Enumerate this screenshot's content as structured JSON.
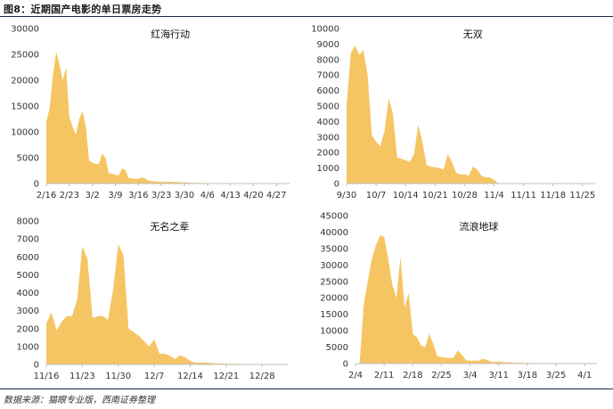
{
  "figure": {
    "title": "图8：近期国产电影的单日票房走势",
    "source": "数据来源：猫眼专业版，西南证券整理"
  },
  "colors": {
    "fill": "#F6C563",
    "axis": "#bfbfbf",
    "text": "#333333"
  },
  "chart_data": [
    {
      "type": "area",
      "title": "红海行动",
      "xlabel": "",
      "ylabel": "",
      "ylim": [
        0,
        30000
      ],
      "yticks": [
        0,
        5000,
        10000,
        15000,
        20000,
        25000,
        30000
      ],
      "x_range": [
        0,
        74
      ],
      "xticks": [
        {
          "x": 0,
          "label": "2/16"
        },
        {
          "x": 7,
          "label": "2/23"
        },
        {
          "x": 14,
          "label": "3/2"
        },
        {
          "x": 21,
          "label": "3/9"
        },
        {
          "x": 28,
          "label": "3/16"
        },
        {
          "x": 35,
          "label": "3/23"
        },
        {
          "x": 42,
          "label": "3/30"
        },
        {
          "x": 49,
          "label": "4/6"
        },
        {
          "x": 56,
          "label": "4/13"
        },
        {
          "x": 63,
          "label": "4/20"
        },
        {
          "x": 70,
          "label": "4/27"
        }
      ],
      "x": [
        0,
        1,
        2,
        3,
        4,
        5,
        6,
        7,
        8,
        9,
        10,
        11,
        12,
        13,
        14,
        15,
        16,
        17,
        18,
        19,
        20,
        21,
        22,
        23,
        24,
        25,
        26,
        27,
        28,
        29,
        30,
        31,
        32,
        33,
        34,
        35,
        36,
        37,
        38,
        39,
        40,
        41,
        42,
        43,
        44,
        45,
        46,
        47,
        48,
        49,
        50,
        51,
        52,
        53,
        54,
        55,
        56,
        57,
        58,
        59,
        60,
        61,
        62,
        63,
        64,
        65,
        66,
        67,
        68,
        69,
        70,
        71,
        72
      ],
      "values": [
        12000,
        14500,
        21000,
        25500,
        23000,
        20000,
        22500,
        13000,
        11000,
        9500,
        12500,
        14000,
        11000,
        4500,
        4000,
        3800,
        3800,
        5800,
        5000,
        2000,
        1900,
        1700,
        1600,
        2900,
        2700,
        1100,
        1000,
        900,
        900,
        1200,
        1000,
        600,
        500,
        400,
        400,
        300,
        300,
        400,
        350,
        300,
        300,
        250,
        200,
        200,
        150,
        150,
        120,
        100,
        100,
        80,
        80,
        70,
        60,
        60,
        50,
        50,
        40,
        40,
        30,
        30,
        30,
        20,
        20,
        20,
        20,
        10,
        10,
        10,
        10,
        10,
        10,
        0,
        0
      ]
    },
    {
      "type": "area",
      "title": "无双",
      "xlabel": "",
      "ylabel": "",
      "ylim": [
        0,
        10000
      ],
      "yticks": [
        0,
        1000,
        2000,
        3000,
        4000,
        5000,
        6000,
        7000,
        8000,
        9000,
        10000
      ],
      "x_range": [
        0,
        59
      ],
      "xticks": [
        {
          "x": 0,
          "label": "9/30"
        },
        {
          "x": 7,
          "label": "10/7"
        },
        {
          "x": 14,
          "label": "10/14"
        },
        {
          "x": 21,
          "label": "10/21"
        },
        {
          "x": 28,
          "label": "10/28"
        },
        {
          "x": 35,
          "label": "11/4"
        },
        {
          "x": 42,
          "label": "11/11"
        },
        {
          "x": 49,
          "label": "11/18"
        },
        {
          "x": 56,
          "label": "11/25"
        }
      ],
      "x": [
        0,
        1,
        2,
        3,
        4,
        5,
        6,
        7,
        8,
        9,
        10,
        11,
        12,
        13,
        14,
        15,
        16,
        17,
        18,
        19,
        20,
        21,
        22,
        23,
        24,
        25,
        26,
        27,
        28,
        29,
        30,
        31,
        32,
        33,
        34,
        35,
        36,
        37,
        38,
        39,
        40,
        41,
        42,
        43,
        44,
        45,
        46,
        47,
        48,
        49,
        50,
        51,
        52,
        53,
        54,
        55
      ],
      "values": [
        5100,
        8400,
        8900,
        8300,
        8600,
        7000,
        3100,
        2700,
        2400,
        3400,
        5500,
        4500,
        1700,
        1600,
        1500,
        1400,
        1900,
        3800,
        2700,
        1200,
        1100,
        1050,
        1000,
        900,
        1900,
        1400,
        700,
        600,
        600,
        500,
        1100,
        900,
        500,
        400,
        400,
        250,
        0,
        0,
        0,
        0,
        0,
        0,
        0,
        0,
        0,
        0,
        0,
        0,
        0,
        0,
        0,
        0,
        0,
        0,
        0,
        0
      ]
    },
    {
      "type": "area",
      "title": "无名之辈",
      "xlabel": "",
      "ylabel": "",
      "ylim": [
        0,
        8000
      ],
      "yticks": [
        0,
        1000,
        2000,
        3000,
        4000,
        5000,
        6000,
        7000,
        8000
      ],
      "x_range": [
        0,
        47
      ],
      "xticks": [
        {
          "x": 0,
          "label": "11/16"
        },
        {
          "x": 7,
          "label": "11/23"
        },
        {
          "x": 14,
          "label": "11/30"
        },
        {
          "x": 21,
          "label": "12/7"
        },
        {
          "x": 28,
          "label": "12/14"
        },
        {
          "x": 35,
          "label": "12/21"
        },
        {
          "x": 42,
          "label": "12/28"
        }
      ],
      "x": [
        0,
        1,
        2,
        3,
        4,
        5,
        6,
        7,
        8,
        9,
        10,
        11,
        12,
        13,
        14,
        15,
        16,
        17,
        18,
        19,
        20,
        21,
        22,
        23,
        24,
        25,
        26,
        27,
        28,
        29,
        30,
        31,
        32,
        33,
        34,
        35,
        36,
        37,
        38,
        39,
        40,
        41,
        42,
        43,
        44,
        45,
        46
      ],
      "values": [
        2300,
        2900,
        1900,
        2400,
        2700,
        2700,
        3600,
        6600,
        5900,
        2600,
        2700,
        2700,
        2500,
        4200,
        6700,
        6100,
        2000,
        1800,
        1600,
        1300,
        1000,
        1400,
        600,
        600,
        500,
        300,
        500,
        400,
        200,
        100,
        100,
        100,
        80,
        60,
        50,
        40,
        40,
        30,
        30,
        20,
        20,
        20,
        10,
        10,
        10,
        10,
        10
      ]
    },
    {
      "type": "area",
      "title": "流浪地球",
      "xlabel": "",
      "ylabel": "",
      "ylim": [
        0,
        45000
      ],
      "yticks": [
        0,
        5000,
        10000,
        15000,
        20000,
        25000,
        30000,
        35000,
        40000,
        45000
      ],
      "x_range": [
        0,
        59
      ],
      "xticks": [
        {
          "x": 0,
          "label": "2/4"
        },
        {
          "x": 7,
          "label": "2/11"
        },
        {
          "x": 14,
          "label": "2/18"
        },
        {
          "x": 21,
          "label": "2/25"
        },
        {
          "x": 28,
          "label": "3/4"
        },
        {
          "x": 35,
          "label": "3/11"
        },
        {
          "x": 42,
          "label": "3/18"
        },
        {
          "x": 49,
          "label": "3/25"
        },
        {
          "x": 56,
          "label": "4/1"
        }
      ],
      "x": [
        1,
        2,
        3,
        4,
        5,
        6,
        7,
        8,
        9,
        10,
        11,
        12,
        13,
        14,
        15,
        16,
        17,
        18,
        19,
        20,
        21,
        22,
        23,
        24,
        25,
        26,
        27,
        28,
        29,
        30,
        31,
        32,
        33,
        34,
        35,
        36,
        37,
        38,
        39,
        40,
        41,
        42,
        43,
        44,
        45,
        46,
        47,
        48,
        49,
        50,
        51,
        52,
        53,
        54,
        55,
        56,
        57,
        58
      ],
      "values": [
        0,
        18000,
        25000,
        32000,
        36000,
        39000,
        38500,
        32000,
        24000,
        20000,
        32500,
        17000,
        21500,
        9000,
        8000,
        5500,
        5000,
        9000,
        6000,
        2200,
        2000,
        1800,
        1700,
        1800,
        4000,
        2700,
        1000,
        900,
        900,
        800,
        1400,
        1200,
        600,
        500,
        600,
        500,
        400,
        350,
        300,
        250,
        200,
        200,
        150,
        150,
        120,
        100,
        100,
        80,
        80,
        60,
        50,
        50,
        40,
        40,
        30,
        30,
        20,
        20
      ]
    }
  ]
}
